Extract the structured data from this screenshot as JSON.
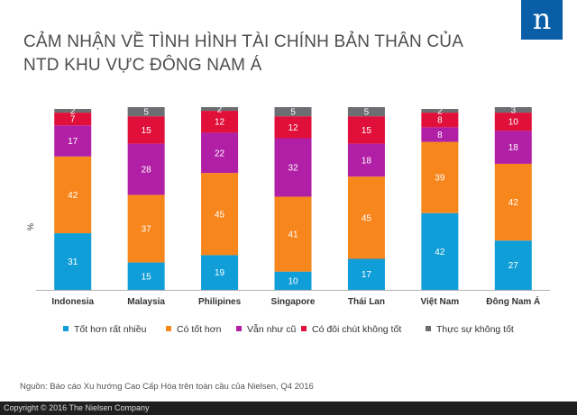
{
  "title": "CẢM NHẬN VỀ TÌNH HÌNH TÀI CHÍNH BẢN THÂN CỦA NTD KHU VỰC ĐÔNG NAM Á",
  "logo": {
    "letter": "n",
    "color": "#0a5ea8"
  },
  "source": "Nguồn: Báo cáo Xu hướng Cao Cấp Hóa trên toàn cầu của Nielsen, Q4 2016",
  "footer": "Copyright © 2016 The Nielsen Company",
  "chart_data": {
    "type": "bar",
    "stacked": true,
    "orientation": "vertical",
    "ylabel": "%",
    "ylim": [
      0,
      100
    ],
    "grid": false,
    "legend_position": "bottom",
    "categories": [
      "Indonesia",
      "Malaysia",
      "Philipines",
      "Singapore",
      "Thái Lan",
      "Việt Nam",
      "Đông Nam Á"
    ],
    "series": [
      {
        "name": "Tốt hơn rất nhiều",
        "color": "#109ed8",
        "values": [
          31,
          15,
          19,
          10,
          17,
          42,
          27
        ]
      },
      {
        "name": "Có tốt hơn",
        "color": "#f7861c",
        "values": [
          42,
          37,
          45,
          41,
          45,
          39,
          42
        ]
      },
      {
        "name": "Vẫn như cũ",
        "color": "#b11fa6",
        "values": [
          17,
          28,
          22,
          32,
          18,
          8,
          18
        ]
      },
      {
        "name": "Có đôi chút không tốt",
        "color": "#e0103a",
        "values": [
          7,
          15,
          12,
          12,
          15,
          8,
          10
        ]
      },
      {
        "name": "Thực sự không tốt",
        "color": "#6d6e71",
        "values": [
          2,
          5,
          2,
          5,
          5,
          2,
          3
        ]
      }
    ]
  }
}
